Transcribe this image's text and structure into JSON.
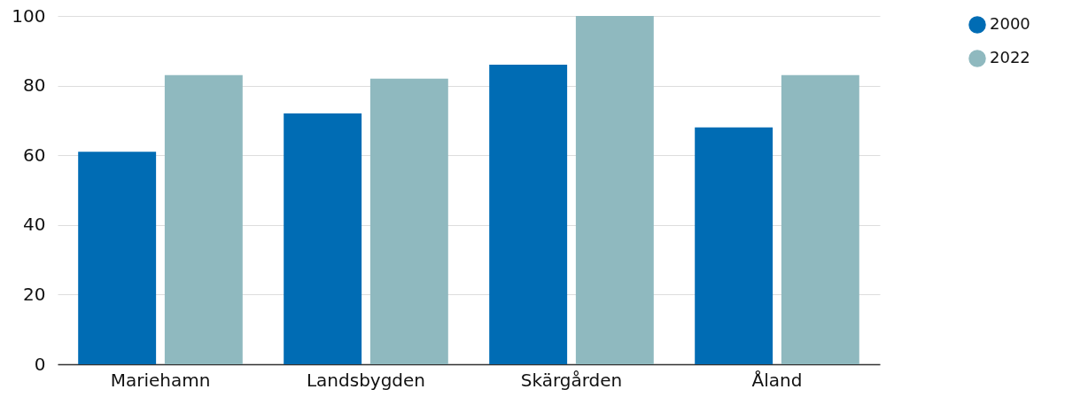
{
  "chart_data": {
    "type": "bar",
    "categories": [
      "Mariehamn",
      "Landsbygden",
      "Skärgården",
      "Åland"
    ],
    "series": [
      {
        "name": "2000",
        "color": "#006cb4",
        "values": [
          61,
          72,
          86,
          68
        ]
      },
      {
        "name": "2022",
        "color": "#8fb9bf",
        "values": [
          83,
          82,
          100,
          83
        ]
      }
    ],
    "ylim": [
      0,
      100
    ],
    "yticks": [
      0,
      20,
      40,
      60,
      80,
      100
    ],
    "grid": "y",
    "legend": "right"
  }
}
